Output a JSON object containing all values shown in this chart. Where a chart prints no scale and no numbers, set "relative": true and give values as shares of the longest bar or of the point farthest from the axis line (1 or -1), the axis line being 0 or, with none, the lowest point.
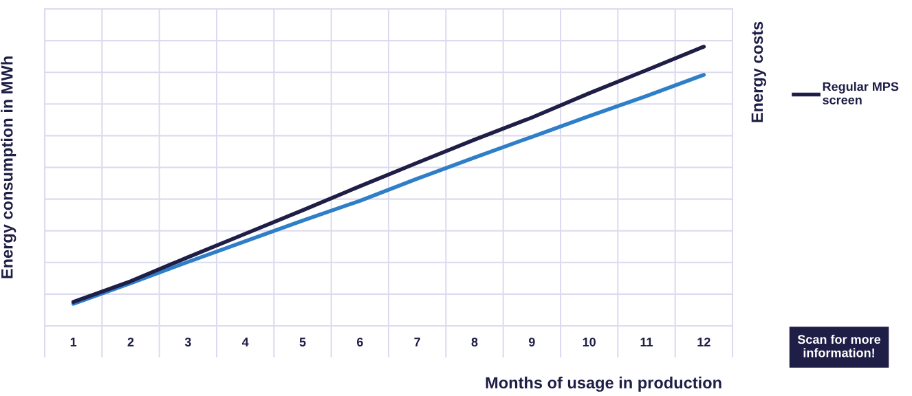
{
  "chart_data": {
    "type": "line",
    "relative": true,
    "xlabel": "Months of usage in production",
    "ylabel": "Energy consumption in MWh",
    "y2label": "Energy costs",
    "categories": [
      "1",
      "2",
      "3",
      "4",
      "5",
      "6",
      "7",
      "8",
      "9",
      "10",
      "11",
      "12"
    ],
    "series": [
      {
        "color": "#2f7fc8",
        "values": [
          0.079,
          0.153,
          0.229,
          0.303,
          0.377,
          0.448,
          0.527,
          0.603,
          0.677,
          0.751,
          0.823,
          0.899
        ]
      },
      {
        "name": "Regular MPS\nscreen",
        "color": "#1e1e46",
        "values": [
          0.086,
          0.16,
          0.246,
          0.33,
          0.414,
          0.5,
          0.584,
          0.667,
          0.746,
          0.833,
          0.916,
          1.0
        ]
      }
    ],
    "annotations": [
      "Scan for more information!"
    ],
    "grid": true,
    "legend": "top right",
    "marker": "none",
    "line_style": "solid"
  }
}
